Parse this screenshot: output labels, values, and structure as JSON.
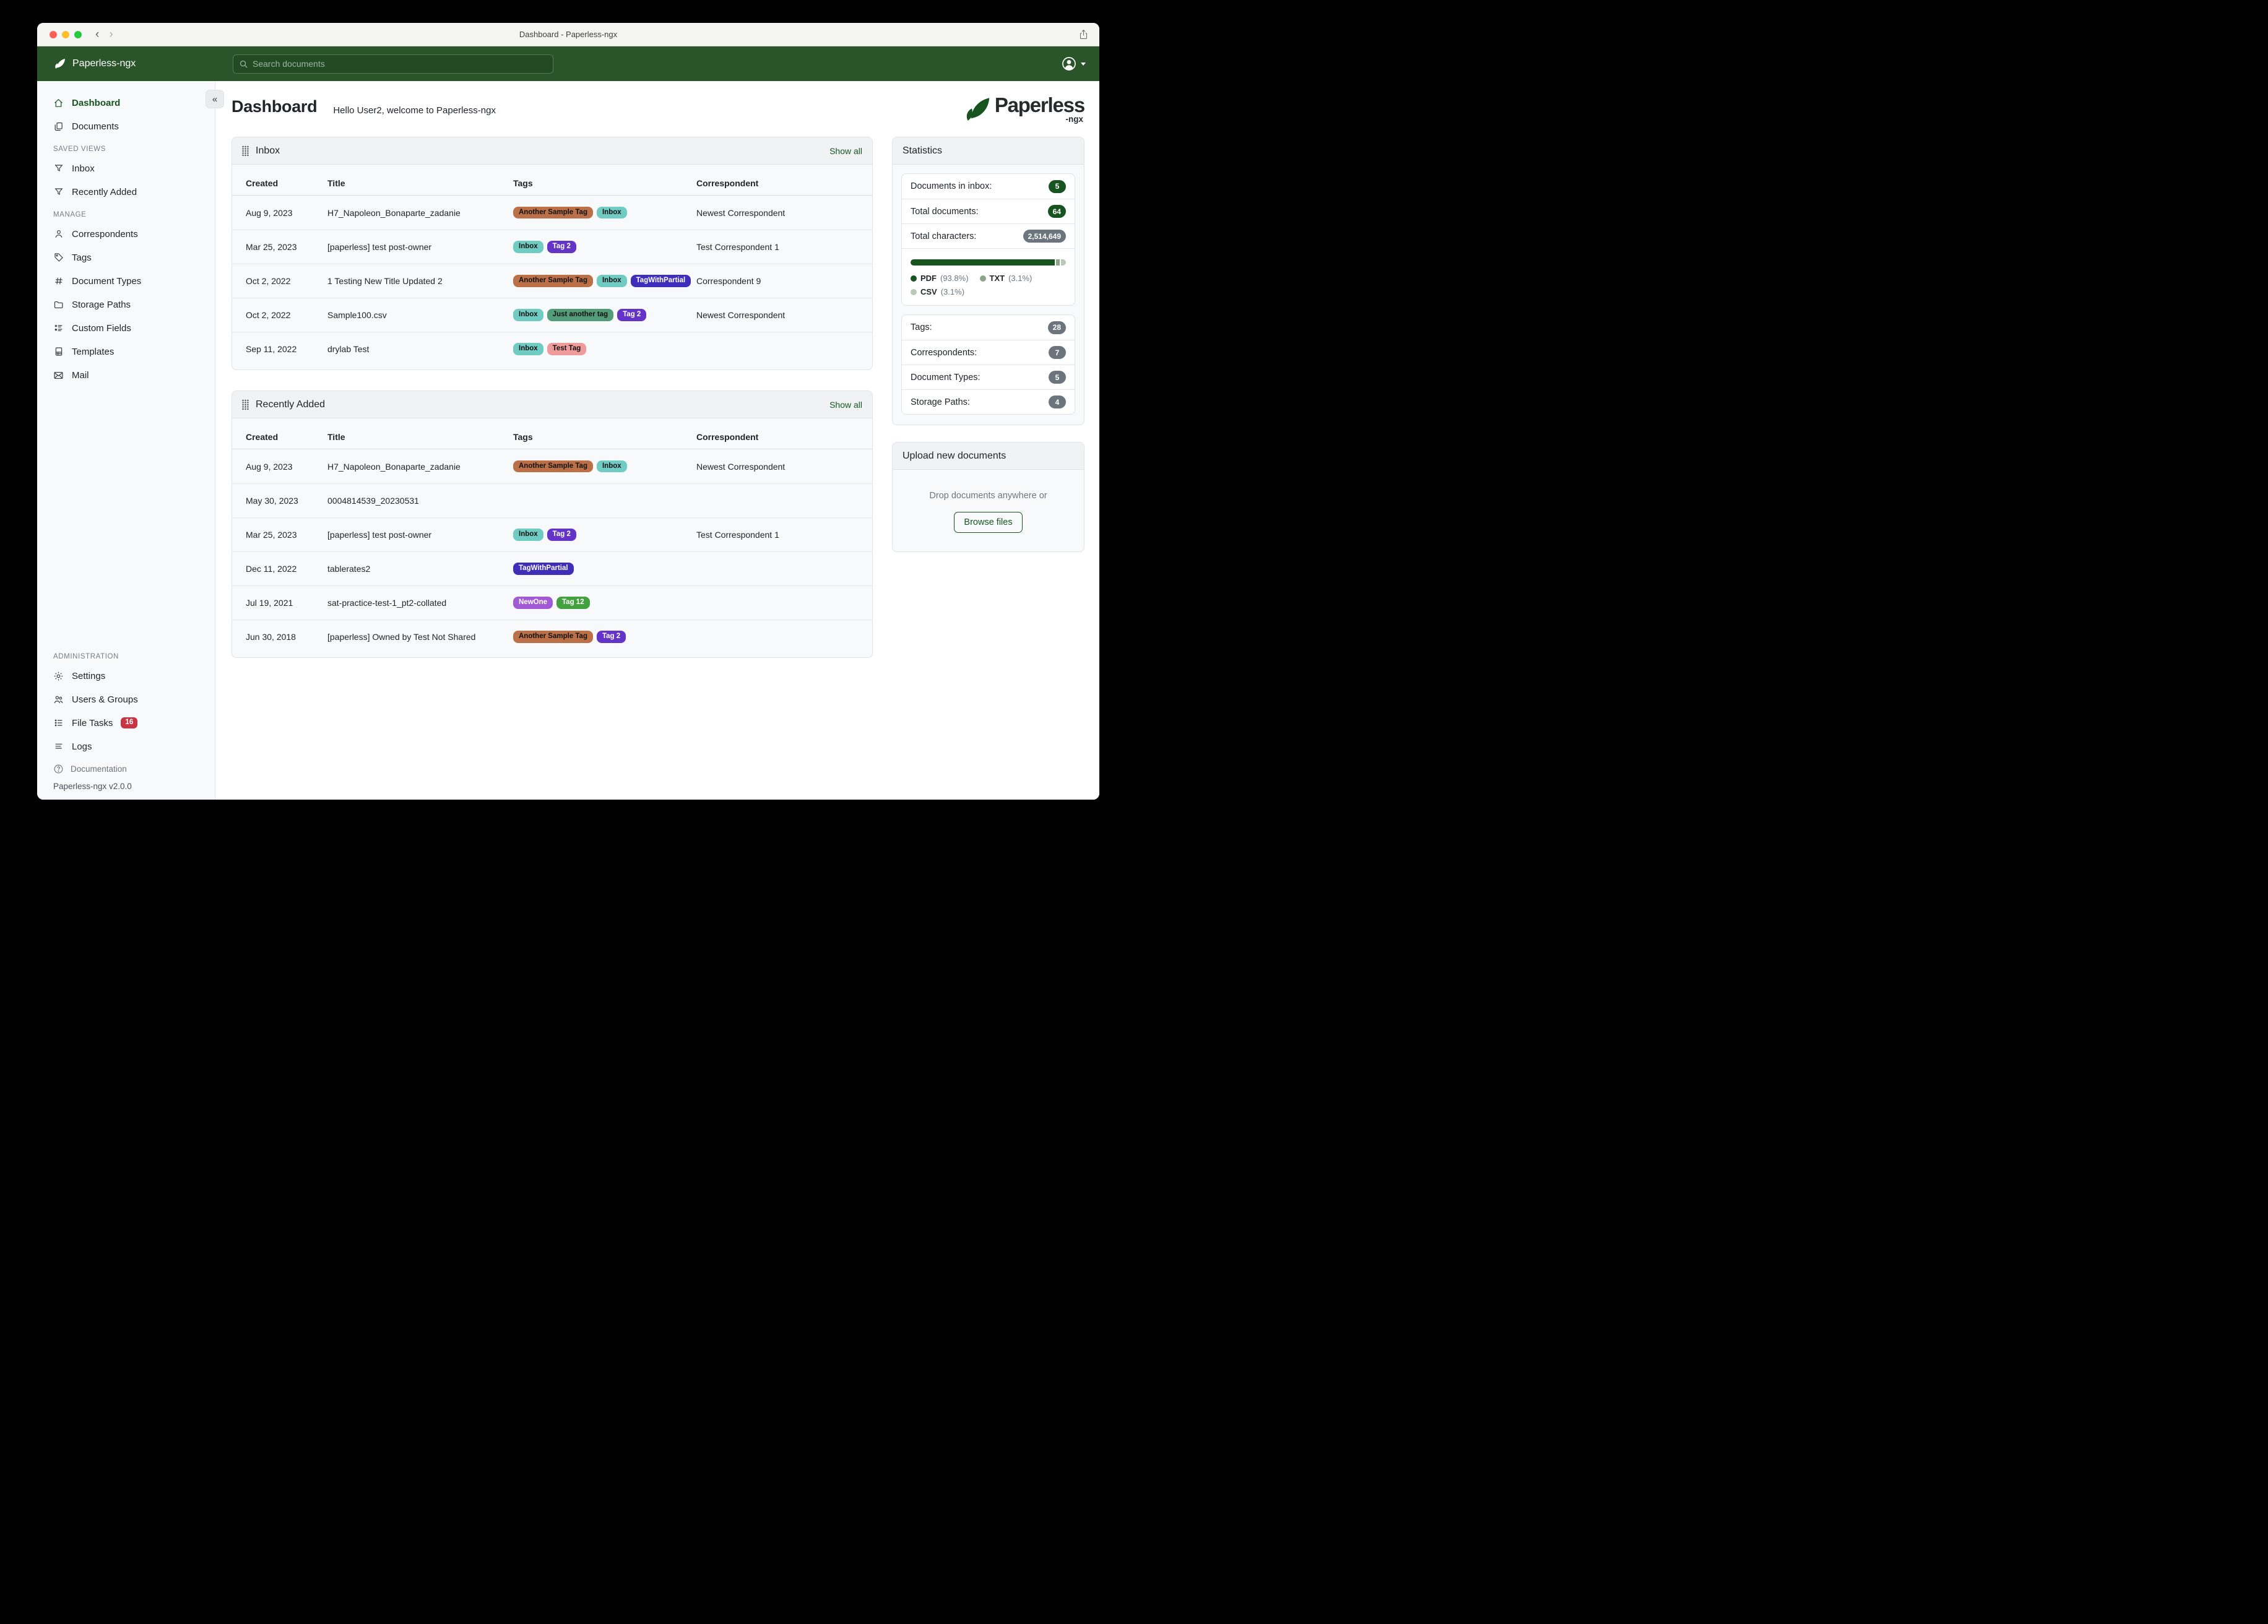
{
  "window": {
    "title": "Dashboard - Paperless-ngx"
  },
  "navbar": {
    "brand": "Paperless-ngx",
    "search": {
      "placeholder": "Search documents"
    }
  },
  "sidebar": {
    "items": {
      "dashboard": "Dashboard",
      "documents": "Documents",
      "inbox": "Inbox",
      "recently_added": "Recently Added",
      "correspondents": "Correspondents",
      "tags": "Tags",
      "document_types": "Document Types",
      "storage_paths": "Storage Paths",
      "custom_fields": "Custom Fields",
      "templates": "Templates",
      "mail": "Mail",
      "settings": "Settings",
      "users_groups": "Users & Groups",
      "file_tasks": "File Tasks",
      "logs": "Logs"
    },
    "headers": {
      "saved_views": "SAVED VIEWS",
      "manage": "MANAGE",
      "administration": "ADMINISTRATION"
    },
    "file_tasks_badge": "16",
    "documentation": "Documentation",
    "version": "Paperless-ngx v2.0.0"
  },
  "page": {
    "title": "Dashboard",
    "subtitle": "Hello User2, welcome to Paperless-ngx"
  },
  "logo": {
    "word": "Paperless",
    "suffix": "-ngx"
  },
  "colors": {
    "accent_green": "#17541f",
    "navbar_green": "#2a552a",
    "badge_gray": "#6c757d",
    "file_tasks_red": "#ca3343"
  },
  "panels": {
    "inbox": {
      "title": "Inbox",
      "action": "Show all",
      "columns": [
        "Created",
        "Title",
        "Tags",
        "Correspondent"
      ],
      "rows": [
        {
          "created": "Aug 9, 2023",
          "title": "H7_Napoleon_Bonaparte_zadanie",
          "tags": [
            {
              "label": "Another Sample Tag",
              "bg": "#bc7048",
              "fg": "#111111"
            },
            {
              "label": "Inbox",
              "bg": "#70cbc2",
              "fg": "#111111"
            }
          ],
          "correspondent": "Newest Correspondent"
        },
        {
          "created": "Mar 25, 2023",
          "title": "[paperless] test post-owner",
          "tags": [
            {
              "label": "Inbox",
              "bg": "#70cbc2",
              "fg": "#111111"
            },
            {
              "label": "Tag 2",
              "bg": "#6434c9",
              "fg": "#ffffff"
            }
          ],
          "correspondent": "Test Correspondent 1"
        },
        {
          "created": "Oct 2, 2022",
          "title": "1 Testing New Title Updated 2",
          "tags": [
            {
              "label": "Another Sample Tag",
              "bg": "#bc7048",
              "fg": "#111111"
            },
            {
              "label": "Inbox",
              "bg": "#70cbc2",
              "fg": "#111111"
            },
            {
              "label": "TagWithPartial",
              "bg": "#3e2eba",
              "fg": "#ffffff"
            }
          ],
          "correspondent": "Correspondent 9"
        },
        {
          "created": "Oct 2, 2022",
          "title": "Sample100.csv",
          "tags": [
            {
              "label": "Inbox",
              "bg": "#70cbc2",
              "fg": "#111111"
            },
            {
              "label": "Just another tag",
              "bg": "#539d7a",
              "fg": "#111111"
            },
            {
              "label": "Tag 2",
              "bg": "#6434c9",
              "fg": "#ffffff"
            }
          ],
          "correspondent": "Newest Correspondent"
        },
        {
          "created": "Sep 11, 2022",
          "title": "drylab Test",
          "tags": [
            {
              "label": "Inbox",
              "bg": "#70cbc2",
              "fg": "#111111"
            },
            {
              "label": "Test Tag",
              "bg": "#f09b9b",
              "fg": "#111111"
            }
          ],
          "correspondent": ""
        }
      ]
    },
    "recent": {
      "title": "Recently Added",
      "action": "Show all",
      "columns": [
        "Created",
        "Title",
        "Tags",
        "Correspondent"
      ],
      "rows": [
        {
          "created": "Aug 9, 2023",
          "title": "H7_Napoleon_Bonaparte_zadanie",
          "tags": [
            {
              "label": "Another Sample Tag",
              "bg": "#bc7048",
              "fg": "#111111"
            },
            {
              "label": "Inbox",
              "bg": "#70cbc2",
              "fg": "#111111"
            }
          ],
          "correspondent": "Newest Correspondent"
        },
        {
          "created": "May 30, 2023",
          "title": "0004814539_20230531",
          "tags": [],
          "correspondent": ""
        },
        {
          "created": "Mar 25, 2023",
          "title": "[paperless] test post-owner",
          "tags": [
            {
              "label": "Inbox",
              "bg": "#70cbc2",
              "fg": "#111111"
            },
            {
              "label": "Tag 2",
              "bg": "#6434c9",
              "fg": "#ffffff"
            }
          ],
          "correspondent": "Test Correspondent 1"
        },
        {
          "created": "Dec 11, 2022",
          "title": "tablerates2",
          "tags": [
            {
              "label": "TagWithPartial",
              "bg": "#3e2eba",
              "fg": "#ffffff"
            }
          ],
          "correspondent": ""
        },
        {
          "created": "Jul 19, 2021",
          "title": "sat-practice-test-1_pt2-collated",
          "tags": [
            {
              "label": "NewOne",
              "bg": "#a25ad4",
              "fg": "#ffffff"
            },
            {
              "label": "Tag 12",
              "bg": "#43a13f",
              "fg": "#ffffff"
            }
          ],
          "correspondent": ""
        },
        {
          "created": "Jun 30, 2018",
          "title": "[paperless] Owned by Test Not Shared",
          "tags": [
            {
              "label": "Another Sample Tag",
              "bg": "#bc7048",
              "fg": "#111111"
            },
            {
              "label": "Tag 2",
              "bg": "#6434c9",
              "fg": "#ffffff"
            }
          ],
          "correspondent": ""
        }
      ]
    },
    "statistics": {
      "title": "Statistics",
      "stats": [
        {
          "label": "Documents in inbox:",
          "value": "5"
        },
        {
          "label": "Total documents:",
          "value": "64"
        },
        {
          "label": "Total characters:",
          "value": "2,514,649"
        }
      ],
      "file_types": [
        {
          "label": "PDF",
          "pct": 93.8,
          "color": "#17541f"
        },
        {
          "label": "TXT",
          "pct": 3.1,
          "color": "#8aa58a"
        },
        {
          "label": "CSV",
          "pct": 3.1,
          "color": "#bac9b5"
        }
      ],
      "counts": [
        {
          "label": "Tags:",
          "value": "28"
        },
        {
          "label": "Correspondents:",
          "value": "7"
        },
        {
          "label": "Document Types:",
          "value": "5"
        },
        {
          "label": "Storage Paths:",
          "value": "4"
        }
      ]
    },
    "upload": {
      "title": "Upload new documents",
      "hint": "Drop documents anywhere or",
      "button": "Browse files"
    }
  }
}
